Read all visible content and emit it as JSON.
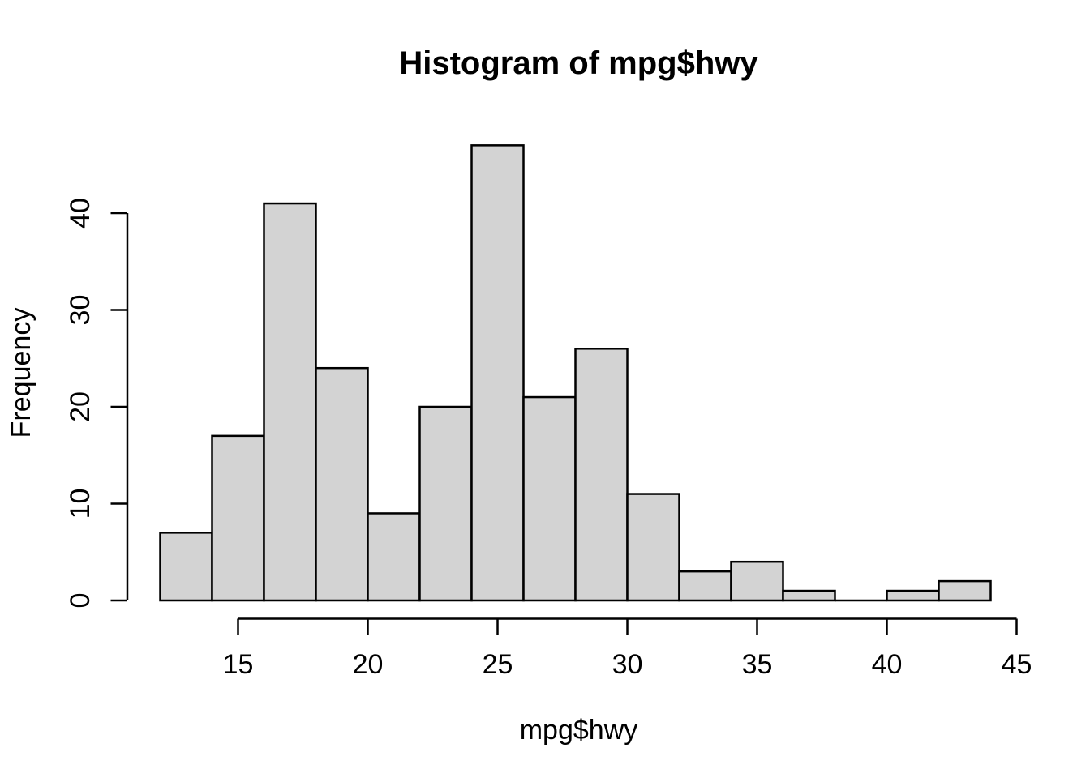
{
  "chart_data": {
    "type": "bar",
    "subtype": "histogram",
    "title": "Histogram of mpg$hwy",
    "xlabel": "mpg$hwy",
    "ylabel": "Frequency",
    "breaks": [
      12,
      14,
      16,
      18,
      20,
      22,
      24,
      26,
      28,
      30,
      32,
      34,
      36,
      38,
      40,
      42,
      44
    ],
    "counts": [
      7,
      17,
      41,
      24,
      9,
      20,
      47,
      21,
      26,
      11,
      3,
      4,
      1,
      0,
      1,
      2
    ],
    "x_ticks": [
      15,
      20,
      25,
      30,
      35,
      40,
      45
    ],
    "y_ticks": [
      0,
      10,
      20,
      30,
      40
    ],
    "xlim": [
      12,
      45
    ],
    "ylim": [
      0,
      47
    ],
    "grid": false,
    "legend": false,
    "bar_fill": "#d3d3d3",
    "bar_stroke": "#000000",
    "axis_color": "#000000",
    "text_color": "#000000",
    "background": "#ffffff"
  }
}
